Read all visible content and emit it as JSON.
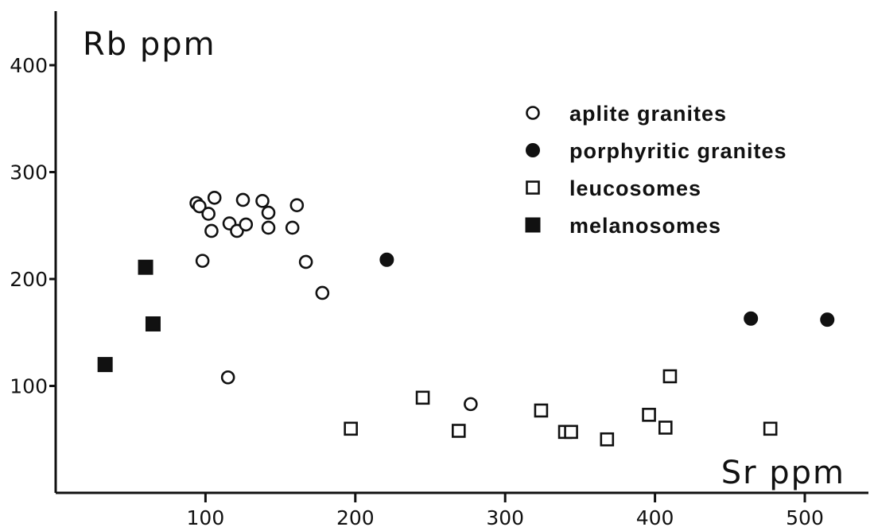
{
  "chart_data": {
    "type": "scatter",
    "title": "",
    "xlabel": "Sr ppm",
    "ylabel": "Rb ppm",
    "xlim": [
      0,
      550
    ],
    "ylim": [
      0,
      450
    ],
    "x_ticks": [
      100,
      200,
      300,
      400,
      500
    ],
    "y_ticks": [
      100,
      200,
      300,
      400
    ],
    "grid": false,
    "legend_position": "top-right",
    "series": [
      {
        "name": "aplite granites",
        "marker": "open-circle",
        "points": [
          [
            94,
            271
          ],
          [
            96,
            268
          ],
          [
            102,
            261
          ],
          [
            104,
            245
          ],
          [
            106,
            276
          ],
          [
            98,
            217
          ],
          [
            116,
            252
          ],
          [
            121,
            245
          ],
          [
            125,
            274
          ],
          [
            127,
            251
          ],
          [
            138,
            273
          ],
          [
            142,
            262
          ],
          [
            142,
            248
          ],
          [
            158,
            248
          ],
          [
            161,
            269
          ],
          [
            167,
            216
          ],
          [
            178,
            187
          ],
          [
            115,
            108
          ],
          [
            277,
            83
          ]
        ]
      },
      {
        "name": "porphyritic granites",
        "marker": "filled-circle",
        "points": [
          [
            221,
            218
          ],
          [
            464,
            163
          ],
          [
            515,
            162
          ]
        ]
      },
      {
        "name": "leucosomes",
        "marker": "open-square",
        "points": [
          [
            197,
            60
          ],
          [
            245,
            89
          ],
          [
            269,
            58
          ],
          [
            324,
            77
          ],
          [
            340,
            57
          ],
          [
            344,
            57
          ],
          [
            368,
            50
          ],
          [
            396,
            73
          ],
          [
            407,
            61
          ],
          [
            410,
            109
          ],
          [
            477,
            60
          ]
        ]
      },
      {
        "name": "melanosomes",
        "marker": "filled-square",
        "points": [
          [
            33,
            120
          ],
          [
            60,
            211
          ],
          [
            65,
            158
          ]
        ]
      }
    ]
  }
}
